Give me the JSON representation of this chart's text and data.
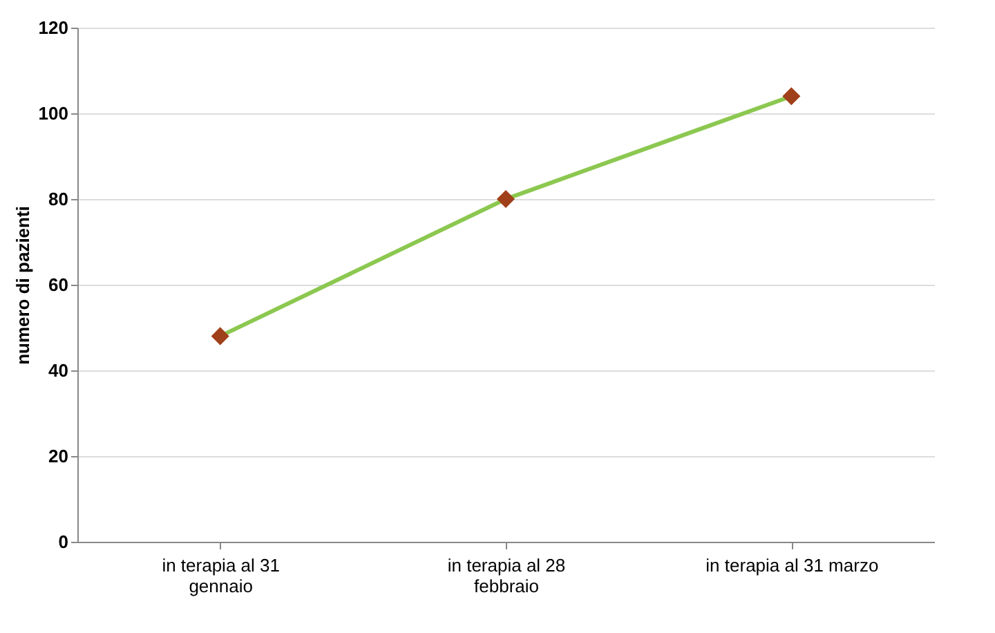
{
  "chart_data": {
    "type": "line",
    "categories": [
      "in terapia al 31 gennaio",
      "in terapia al 28 febbraio",
      "in terapia al 31 marzo"
    ],
    "series": [
      {
        "color": "#8cc850",
        "colors": [
          "#a0401a",
          "#a0401a",
          "#a0401a"
        ],
        "values": [
          48,
          80,
          104
        ]
      }
    ],
    "ylabel": "numero di pazienti",
    "ylim": [
      0,
      120
    ],
    "yticks": [
      0,
      20,
      40,
      60,
      80,
      100,
      120
    ],
    "grid": "y",
    "marker": "diamond",
    "line_style": "solid"
  }
}
